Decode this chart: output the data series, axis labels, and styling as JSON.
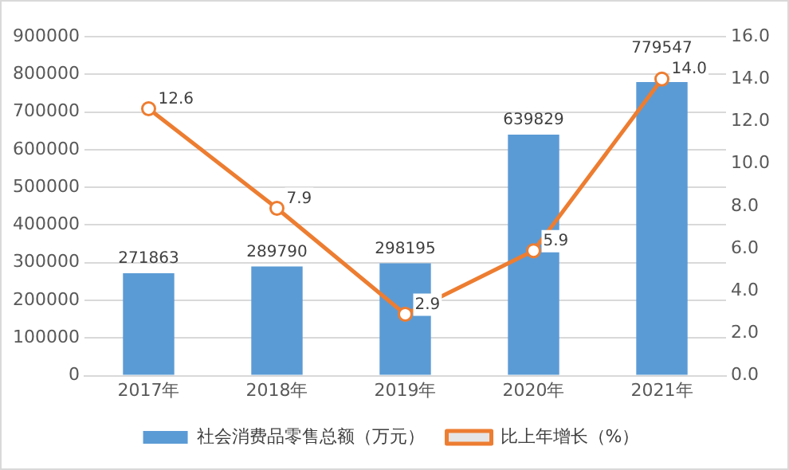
{
  "chart_data": {
    "type": "bar",
    "categories": [
      "2017年",
      "2018年",
      "2019年",
      "2020年",
      "2021年"
    ],
    "series": [
      {
        "name": "社会消费品零售总额（万元）",
        "color": "#5b9bd5",
        "values": [
          271863,
          289790,
          298195,
          639829,
          779547
        ],
        "value_labels": [
          "271863",
          "289790",
          "298195",
          "639829",
          "779547"
        ]
      },
      {
        "name": "比上年增长（%）",
        "type": "line",
        "axis": "y2",
        "color": "#ed7d31",
        "values": [
          12.6,
          7.9,
          2.9,
          5.9,
          14.0
        ],
        "value_labels": [
          "12.6",
          "7.9",
          "2.9",
          "5.9",
          "14.0"
        ]
      }
    ],
    "ylim": [
      0,
      900000
    ],
    "yticks": [
      0,
      100000,
      200000,
      300000,
      400000,
      500000,
      600000,
      700000,
      800000,
      900000
    ],
    "y2lim": [
      0,
      16
    ],
    "y2ticks": [
      {
        "value": 0,
        "label": "0.0"
      },
      {
        "value": 2,
        "label": "2.0"
      },
      {
        "value": 4,
        "label": "4.0"
      },
      {
        "value": 6,
        "label": "6.0"
      },
      {
        "value": 8,
        "label": "8.0"
      },
      {
        "value": 10,
        "label": "10.0"
      },
      {
        "value": 12,
        "label": "12.0"
      },
      {
        "value": 14,
        "label": "14.0"
      },
      {
        "value": 16,
        "label": "16.0"
      }
    ],
    "grid": "y",
    "legend": "bottom",
    "marker": "circle"
  }
}
